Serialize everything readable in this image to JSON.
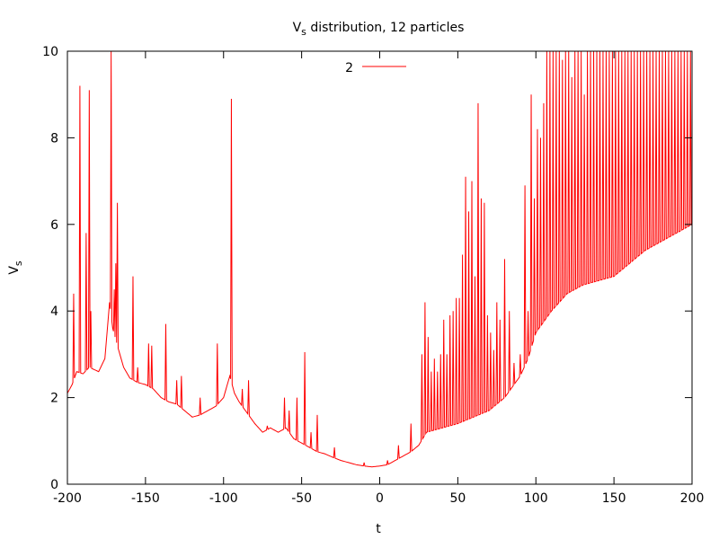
{
  "chart_data": {
    "type": "line",
    "title": "V",
    "title_sub": "s",
    "title_rest": " distribution, 12 particles",
    "xlabel": "t",
    "ylabel": "V",
    "ylabel_sub": "s",
    "xlim": [
      -200,
      200
    ],
    "ylim": [
      0,
      10
    ],
    "xticks": [
      -200,
      -150,
      -100,
      -50,
      0,
      50,
      100,
      150,
      200
    ],
    "yticks": [
      0,
      2,
      4,
      6,
      8,
      10
    ],
    "grid": false,
    "legend_position": "top-center",
    "series": [
      {
        "name": "2",
        "color": "#ff0000",
        "baseline": [
          [
            -200,
            2.1
          ],
          [
            -197,
            2.3
          ],
          [
            -194,
            2.6
          ],
          [
            -190,
            2.55
          ],
          [
            -186,
            2.7
          ],
          [
            -180,
            2.6
          ],
          [
            -176,
            2.9
          ],
          [
            -173,
            4.2
          ],
          [
            -171,
            3.6
          ],
          [
            -168,
            3.2
          ],
          [
            -164,
            2.7
          ],
          [
            -160,
            2.45
          ],
          [
            -155,
            2.35
          ],
          [
            -150,
            2.3
          ],
          [
            -145,
            2.2
          ],
          [
            -140,
            2.0
          ],
          [
            -135,
            1.9
          ],
          [
            -130,
            1.85
          ],
          [
            -125,
            1.7
          ],
          [
            -120,
            1.55
          ],
          [
            -115,
            1.6
          ],
          [
            -110,
            1.7
          ],
          [
            -105,
            1.8
          ],
          [
            -100,
            2.0
          ],
          [
            -96,
            2.5
          ],
          [
            -93,
            2.1
          ],
          [
            -90,
            1.9
          ],
          [
            -85,
            1.65
          ],
          [
            -80,
            1.4
          ],
          [
            -75,
            1.2
          ],
          [
            -70,
            1.3
          ],
          [
            -65,
            1.2
          ],
          [
            -60,
            1.3
          ],
          [
            -55,
            1.05
          ],
          [
            -50,
            0.95
          ],
          [
            -45,
            0.85
          ],
          [
            -40,
            0.75
          ],
          [
            -35,
            0.7
          ],
          [
            -30,
            0.62
          ],
          [
            -25,
            0.55
          ],
          [
            -20,
            0.5
          ],
          [
            -15,
            0.45
          ],
          [
            -10,
            0.42
          ],
          [
            -5,
            0.4
          ],
          [
            0,
            0.42
          ],
          [
            5,
            0.45
          ],
          [
            10,
            0.55
          ],
          [
            15,
            0.65
          ],
          [
            20,
            0.75
          ],
          [
            25,
            0.9
          ],
          [
            30,
            1.2
          ],
          [
            40,
            1.3
          ],
          [
            50,
            1.4
          ],
          [
            60,
            1.55
          ],
          [
            70,
            1.7
          ],
          [
            80,
            2.0
          ],
          [
            90,
            2.5
          ],
          [
            95,
            2.9
          ],
          [
            100,
            3.5
          ],
          [
            110,
            4.0
          ],
          [
            120,
            4.4
          ],
          [
            130,
            4.6
          ],
          [
            140,
            4.7
          ],
          [
            150,
            4.8
          ],
          [
            160,
            5.1
          ],
          [
            170,
            5.4
          ],
          [
            180,
            5.6
          ],
          [
            190,
            5.8
          ],
          [
            200,
            6.0
          ]
        ],
        "spikes": [
          [
            -196,
            4.4
          ],
          [
            -192,
            9.2
          ],
          [
            -188,
            5.8
          ],
          [
            -186,
            9.1
          ],
          [
            -185,
            4.0
          ],
          [
            -172,
            10.0
          ],
          [
            -170,
            4.5
          ],
          [
            -169,
            5.1
          ],
          [
            -168,
            6.5
          ],
          [
            -158,
            4.8
          ],
          [
            -155,
            2.7
          ],
          [
            -148,
            3.25
          ],
          [
            -146,
            3.2
          ],
          [
            -137,
            3.7
          ],
          [
            -130,
            2.4
          ],
          [
            -127,
            2.5
          ],
          [
            -115,
            2.0
          ],
          [
            -104,
            3.25
          ],
          [
            -95,
            8.9
          ],
          [
            -88,
            2.2
          ],
          [
            -84,
            2.4
          ],
          [
            -72,
            1.35
          ],
          [
            -61,
            2.0
          ],
          [
            -58,
            1.7
          ],
          [
            -53,
            2.0
          ],
          [
            -48,
            3.05
          ],
          [
            -44,
            1.2
          ],
          [
            -40,
            1.6
          ],
          [
            -29,
            0.85
          ],
          [
            -10,
            0.5
          ],
          [
            5,
            0.55
          ],
          [
            12,
            0.9
          ],
          [
            20,
            1.4
          ],
          [
            27,
            3.0
          ],
          [
            29,
            4.2
          ],
          [
            31,
            3.4
          ],
          [
            33,
            2.6
          ],
          [
            35,
            2.9
          ],
          [
            37,
            2.6
          ],
          [
            39,
            3.0
          ],
          [
            41,
            3.8
          ],
          [
            43,
            3.0
          ],
          [
            45,
            3.9
          ],
          [
            47,
            4.0
          ],
          [
            49,
            4.3
          ],
          [
            51,
            4.3
          ],
          [
            53,
            5.3
          ],
          [
            55,
            7.1
          ],
          [
            57,
            6.3
          ],
          [
            59,
            7.0
          ],
          [
            61,
            4.8
          ],
          [
            63,
            8.8
          ],
          [
            65,
            6.6
          ],
          [
            67,
            6.5
          ],
          [
            69,
            3.9
          ],
          [
            71,
            3.5
          ],
          [
            73,
            3.1
          ],
          [
            75,
            4.2
          ],
          [
            77,
            3.8
          ],
          [
            80,
            5.2
          ],
          [
            83,
            4.0
          ],
          [
            86,
            2.8
          ],
          [
            90,
            3.0
          ],
          [
            93,
            6.9
          ],
          [
            95,
            4.0
          ],
          [
            97,
            9.0
          ],
          [
            99,
            6.6
          ],
          [
            101,
            8.2
          ],
          [
            103,
            8.0
          ],
          [
            105,
            8.8
          ],
          [
            107,
            10.0
          ],
          [
            109,
            10.0
          ],
          [
            111,
            10.0
          ],
          [
            113,
            10.0
          ],
          [
            115,
            10.0
          ],
          [
            117,
            9.8
          ],
          [
            119,
            10.0
          ],
          [
            121,
            10.0
          ],
          [
            123,
            9.4
          ],
          [
            125,
            10.0
          ],
          [
            127,
            10.0
          ],
          [
            129,
            10.0
          ],
          [
            131,
            9.0
          ],
          [
            133,
            10.0
          ],
          [
            135,
            10.0
          ],
          [
            137,
            10.0
          ],
          [
            139,
            10.0
          ],
          [
            141,
            10.0
          ],
          [
            143,
            10.0
          ],
          [
            145,
            10.0
          ],
          [
            147,
            10.0
          ],
          [
            149,
            10.0
          ],
          [
            151,
            10.0
          ],
          [
            153,
            10.0
          ],
          [
            155,
            10.0
          ],
          [
            157,
            10.0
          ],
          [
            159,
            10.0
          ],
          [
            161,
            10.0
          ],
          [
            163,
            10.0
          ],
          [
            165,
            10.0
          ],
          [
            167,
            10.0
          ],
          [
            169,
            10.0
          ],
          [
            171,
            10.0
          ],
          [
            173,
            10.0
          ],
          [
            175,
            10.0
          ],
          [
            177,
            10.0
          ],
          [
            179,
            10.0
          ],
          [
            181,
            10.0
          ],
          [
            183,
            10.0
          ],
          [
            185,
            10.0
          ],
          [
            187,
            10.0
          ],
          [
            189,
            10.0
          ],
          [
            191,
            10.0
          ],
          [
            193,
            10.0
          ],
          [
            195,
            10.0
          ],
          [
            197,
            10.0
          ],
          [
            199,
            10.0
          ]
        ]
      }
    ]
  }
}
